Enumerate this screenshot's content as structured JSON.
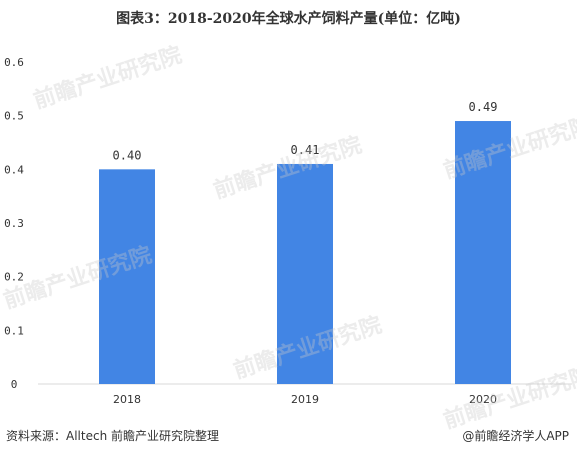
{
  "title": "图表3：2018-2020年全球水产饲料产量(单位：亿吨)",
  "source": "资料来源：Alltech 前瞻产业研究院整理",
  "credit": "@前瞻经济学人APP",
  "watermark": "前瞻产业研究院",
  "chart_data": {
    "type": "bar",
    "title": "图表3：2018-2020年全球水产饲料产量(单位：亿吨)",
    "categories": [
      "2018",
      "2019",
      "2020"
    ],
    "values": [
      0.4,
      0.41,
      0.49
    ],
    "value_labels": [
      "0.40",
      "0.41",
      "0.49"
    ],
    "ylim": [
      0,
      0.6
    ],
    "yticks": [
      "0",
      "0.1",
      "0.2",
      "0.3",
      "0.4",
      "0.5",
      "0.6"
    ],
    "xlabel": "",
    "ylabel": "",
    "grid": false,
    "bar_color": "#4285E4"
  }
}
